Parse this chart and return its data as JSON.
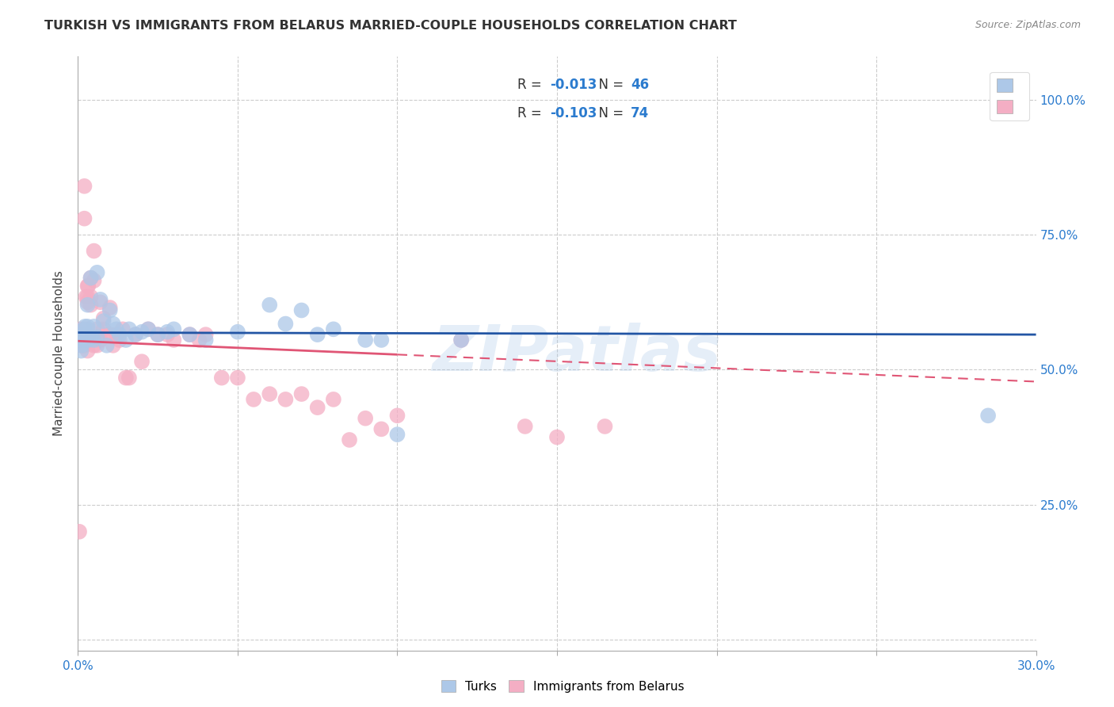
{
  "title": "TURKISH VS IMMIGRANTS FROM BELARUS MARRIED-COUPLE HOUSEHOLDS CORRELATION CHART",
  "source": "Source: ZipAtlas.com",
  "ylabel": "Married-couple Households",
  "R1": -0.013,
  "N1": 46,
  "R2": -0.103,
  "N2": 74,
  "color1": "#adc8e8",
  "color2": "#f4aec4",
  "line_color1": "#2255a4",
  "line_color2": "#e05575",
  "legend_label1": "Turks",
  "legend_label2": "Immigrants from Belarus",
  "watermark": "ZIPatlas",
  "turks_x": [
    0.0008,
    0.001,
    0.0012,
    0.0015,
    0.0018,
    0.002,
    0.0022,
    0.0025,
    0.003,
    0.003,
    0.003,
    0.0032,
    0.004,
    0.0042,
    0.005,
    0.005,
    0.006,
    0.006,
    0.007,
    0.008,
    0.009,
    0.01,
    0.011,
    0.012,
    0.013,
    0.015,
    0.016,
    0.018,
    0.02,
    0.022,
    0.025,
    0.028,
    0.03,
    0.035,
    0.04,
    0.05,
    0.06,
    0.065,
    0.07,
    0.075,
    0.08,
    0.09,
    0.095,
    0.1,
    0.12,
    0.285
  ],
  "turks_y": [
    0.555,
    0.535,
    0.545,
    0.565,
    0.555,
    0.575,
    0.58,
    0.56,
    0.58,
    0.62,
    0.56,
    0.555,
    0.67,
    0.56,
    0.58,
    0.555,
    0.68,
    0.56,
    0.63,
    0.59,
    0.545,
    0.61,
    0.585,
    0.575,
    0.565,
    0.555,
    0.575,
    0.565,
    0.57,
    0.575,
    0.565,
    0.57,
    0.575,
    0.565,
    0.555,
    0.57,
    0.62,
    0.585,
    0.61,
    0.565,
    0.575,
    0.555,
    0.555,
    0.38,
    0.555,
    0.415
  ],
  "belarus_x": [
    0.0004,
    0.0006,
    0.0008,
    0.001,
    0.001,
    0.001,
    0.0012,
    0.0013,
    0.0015,
    0.0015,
    0.0016,
    0.0018,
    0.002,
    0.002,
    0.002,
    0.002,
    0.0022,
    0.0025,
    0.003,
    0.003,
    0.003,
    0.0032,
    0.004,
    0.004,
    0.004,
    0.005,
    0.005,
    0.005,
    0.006,
    0.006,
    0.007,
    0.007,
    0.008,
    0.008,
    0.009,
    0.01,
    0.01,
    0.011,
    0.012,
    0.013,
    0.014,
    0.015,
    0.016,
    0.018,
    0.02,
    0.022,
    0.025,
    0.028,
    0.03,
    0.035,
    0.038,
    0.04,
    0.045,
    0.05,
    0.055,
    0.06,
    0.065,
    0.07,
    0.075,
    0.08,
    0.085,
    0.09,
    0.095,
    0.1,
    0.12,
    0.14,
    0.15,
    0.165,
    0.002,
    0.002,
    0.003,
    0.003,
    0.003,
    0.004
  ],
  "belarus_y": [
    0.2,
    0.565,
    0.55,
    0.545,
    0.565,
    0.575,
    0.555,
    0.57,
    0.545,
    0.565,
    0.555,
    0.545,
    0.545,
    0.57,
    0.555,
    0.565,
    0.575,
    0.635,
    0.625,
    0.575,
    0.555,
    0.655,
    0.67,
    0.62,
    0.555,
    0.545,
    0.72,
    0.665,
    0.575,
    0.545,
    0.625,
    0.555,
    0.575,
    0.595,
    0.565,
    0.615,
    0.565,
    0.545,
    0.565,
    0.555,
    0.575,
    0.485,
    0.485,
    0.565,
    0.515,
    0.575,
    0.565,
    0.565,
    0.555,
    0.565,
    0.555,
    0.565,
    0.485,
    0.485,
    0.445,
    0.455,
    0.445,
    0.455,
    0.43,
    0.445,
    0.37,
    0.41,
    0.39,
    0.415,
    0.555,
    0.395,
    0.375,
    0.395,
    0.84,
    0.78,
    0.635,
    0.655,
    0.535,
    0.635
  ],
  "xlim": [
    0.0,
    0.3
  ],
  "ylim": [
    -0.02,
    1.08
  ],
  "xticks": [
    0.0,
    0.05,
    0.1,
    0.15,
    0.2,
    0.25,
    0.3
  ],
  "yticks": [
    0.0,
    0.25,
    0.5,
    0.75,
    1.0
  ],
  "ytick_labels_right": [
    "",
    "25.0%",
    "50.0%",
    "75.0%",
    "100.0%"
  ]
}
